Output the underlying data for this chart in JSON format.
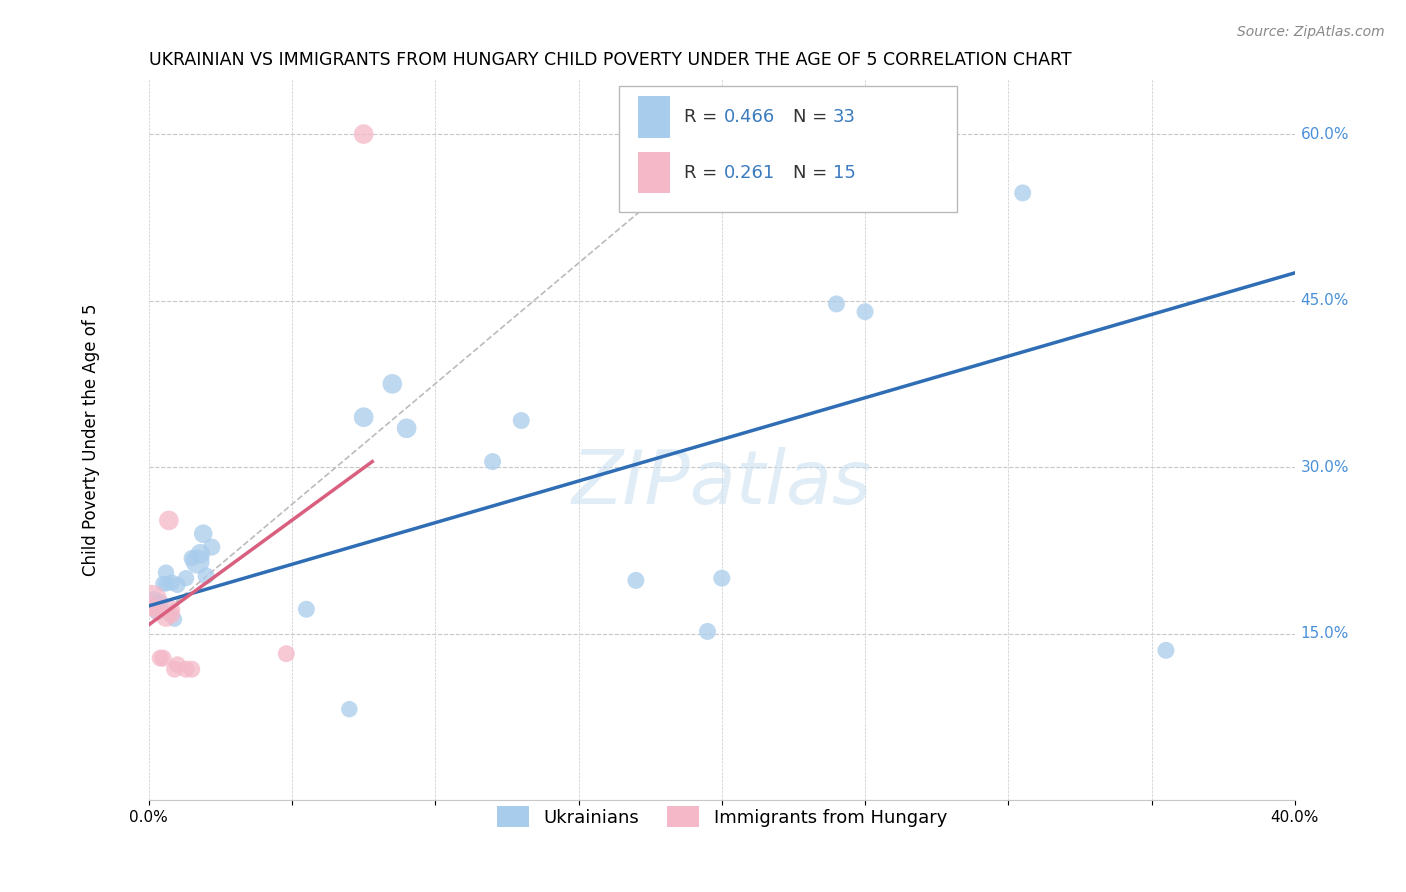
{
  "title": "UKRAINIAN VS IMMIGRANTS FROM HUNGARY CHILD POVERTY UNDER THE AGE OF 5 CORRELATION CHART",
  "source": "Source: ZipAtlas.com",
  "ylabel": "Child Poverty Under the Age of 5",
  "x_min": 0.0,
  "x_max": 0.4,
  "y_min": 0.0,
  "y_max": 0.65,
  "x_ticks": [
    0.0,
    0.05,
    0.1,
    0.15,
    0.2,
    0.25,
    0.3,
    0.35,
    0.4
  ],
  "x_tick_labels": [
    "0.0%",
    "",
    "",
    "",
    "",
    "",
    "",
    "",
    "40.0%"
  ],
  "y_ticks": [
    0.0,
    0.15,
    0.3,
    0.45,
    0.6
  ],
  "y_tick_labels": [
    "",
    "15.0%",
    "30.0%",
    "45.0%",
    "60.0%"
  ],
  "blue_color": "#a8ccec",
  "pink_color": "#f4b8c8",
  "blue_line_color": "#2f6db5",
  "pink_line_color": "#d95f7f",
  "grid_color": "#c8c8c8",
  "watermark": "ZIPatlas",
  "ukrainians_x": [
    0.002,
    0.002,
    0.003,
    0.003,
    0.004,
    0.005,
    0.006,
    0.006,
    0.007,
    0.008,
    0.009,
    0.01,
    0.013,
    0.015,
    0.017,
    0.018,
    0.019,
    0.02,
    0.022,
    0.055,
    0.07,
    0.075,
    0.085,
    0.09,
    0.12,
    0.13,
    0.17,
    0.195,
    0.2,
    0.24,
    0.25,
    0.305,
    0.355
  ],
  "ukrainians_y": [
    0.175,
    0.18,
    0.17,
    0.175,
    0.178,
    0.195,
    0.195,
    0.205,
    0.168,
    0.196,
    0.163,
    0.194,
    0.2,
    0.218,
    0.215,
    0.222,
    0.24,
    0.202,
    0.228,
    0.172,
    0.082,
    0.345,
    0.375,
    0.335,
    0.305,
    0.342,
    0.198,
    0.152,
    0.2,
    0.447,
    0.44,
    0.547,
    0.135
  ],
  "ukrainians_size": [
    200,
    180,
    160,
    150,
    150,
    130,
    130,
    140,
    120,
    140,
    120,
    140,
    140,
    140,
    300,
    200,
    180,
    150,
    150,
    150,
    140,
    200,
    200,
    200,
    150,
    150,
    150,
    150,
    150,
    150,
    150,
    150,
    150
  ],
  "hungary_x": [
    0.001,
    0.001,
    0.003,
    0.004,
    0.005,
    0.006,
    0.007,
    0.008,
    0.008,
    0.009,
    0.01,
    0.013,
    0.015,
    0.048,
    0.075
  ],
  "hungary_y": [
    0.175,
    0.18,
    0.17,
    0.128,
    0.128,
    0.165,
    0.252,
    0.167,
    0.172,
    0.118,
    0.122,
    0.118,
    0.118,
    0.132,
    0.6
  ],
  "hungary_size": [
    150,
    500,
    150,
    150,
    150,
    200,
    200,
    150,
    150,
    150,
    150,
    150,
    150,
    150,
    200
  ],
  "blue_line_x0": 0.0,
  "blue_line_x1": 0.4,
  "blue_line_y0": 0.175,
  "blue_line_y1": 0.475,
  "pink_line_x0": 0.0,
  "pink_line_x1": 0.078,
  "pink_line_y0": 0.158,
  "pink_line_y1": 0.305,
  "dash_line_x0": 0.0,
  "dash_line_x1": 0.215,
  "dash_line_y0": 0.158,
  "dash_line_y1": 0.625
}
